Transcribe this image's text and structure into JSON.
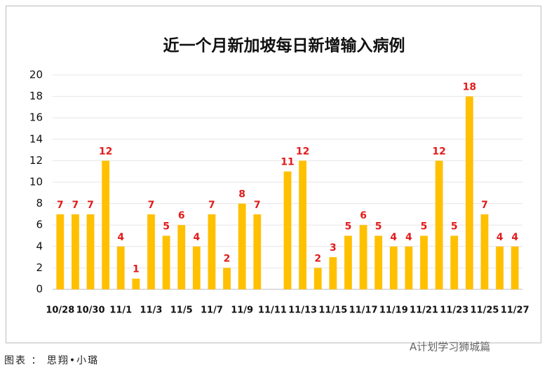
{
  "chart_data": {
    "type": "bar",
    "title": "近一个月新加坡每日新增输入病例",
    "categories": [
      "10/28",
      null,
      "10/30",
      null,
      "11/1",
      null,
      "11/3",
      null,
      "11/5",
      null,
      "11/7",
      null,
      "11/9",
      null,
      "11/11",
      null,
      "11/13",
      null,
      "11/15",
      null,
      "11/17",
      null,
      "11/19",
      null,
      "11/21",
      null,
      "11/23",
      null,
      "11/25",
      null,
      "11/27"
    ],
    "values": [
      7,
      7,
      7,
      12,
      4,
      1,
      7,
      5,
      6,
      4,
      7,
      2,
      8,
      7,
      null,
      11,
      12,
      2,
      3,
      5,
      6,
      5,
      4,
      4,
      5,
      12,
      5,
      18,
      7,
      4,
      4
    ],
    "color": "#ffc000",
    "label_color": "#e31b1b",
    "ylim": [
      0,
      20
    ],
    "yticks": [
      0,
      2,
      4,
      6,
      8,
      10,
      12,
      14,
      16,
      18,
      20
    ],
    "grid": true
  },
  "caption": "图表 ： 思翔•小璐",
  "watermark": "A计划学习狮城篇"
}
